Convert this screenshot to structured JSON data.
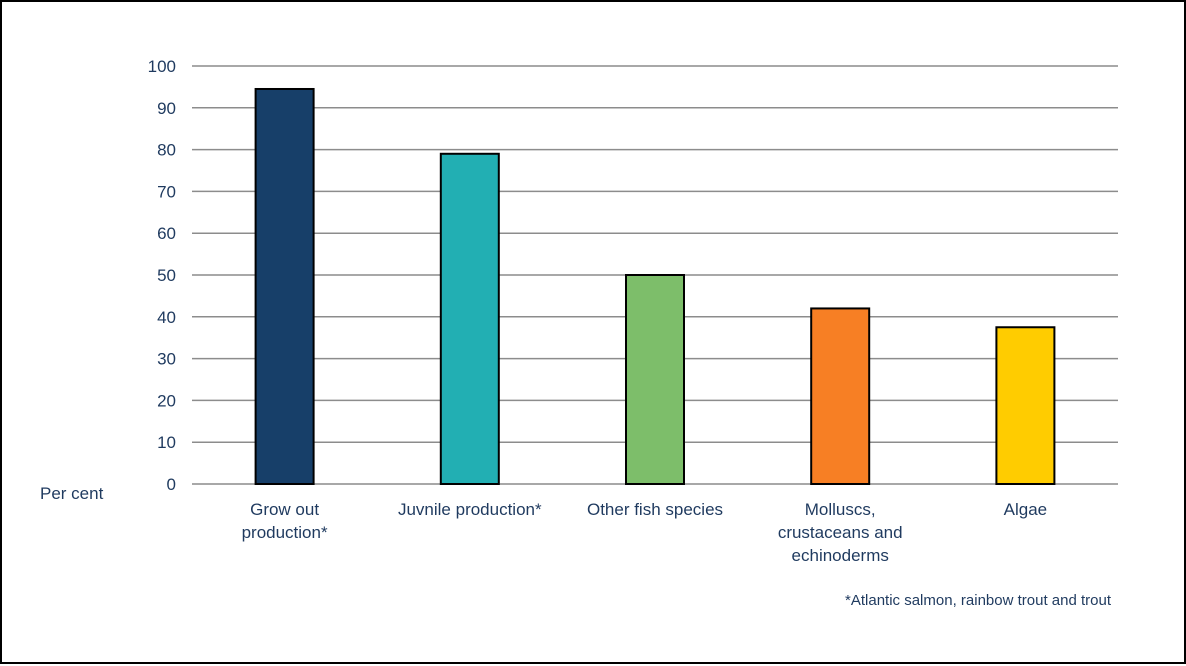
{
  "chart_data": {
    "type": "bar",
    "ylabel": "Per cent",
    "ylim": [
      0,
      100
    ],
    "yticks": [
      0,
      10,
      20,
      30,
      40,
      50,
      60,
      70,
      80,
      90,
      100
    ],
    "grid": true,
    "categories": [
      [
        "Grow out",
        "production*"
      ],
      [
        "Juvnile production*"
      ],
      [
        "Other fish species"
      ],
      [
        "Molluscs,",
        "crustaceans and",
        "echinoderms"
      ],
      [
        "Algae"
      ]
    ],
    "values": [
      94.5,
      79,
      50,
      42,
      37.5
    ],
    "colors": [
      "#173f69",
      "#22afb3",
      "#7dbe6a",
      "#f77f24",
      "#ffcc00"
    ],
    "footnote": "*Atlantic salmon, rainbow trout and trout"
  }
}
